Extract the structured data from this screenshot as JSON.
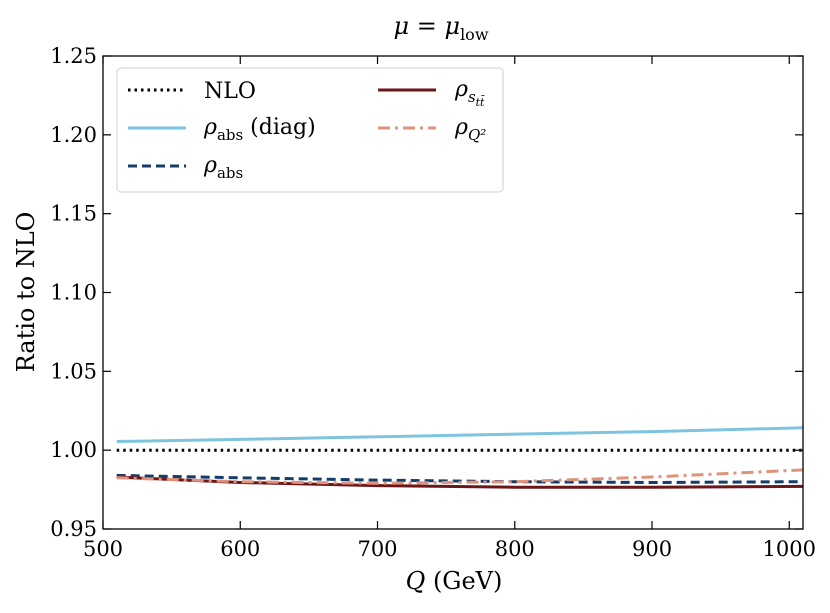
{
  "chart_data": {
    "type": "line",
    "title_symbol": "μ",
    "title_eq": " = ",
    "title_symbol2": "μ",
    "title_sub": "low",
    "xlabel_symbol": "Q",
    "xlabel_unit": " (GeV)",
    "ylabel": "Ratio to NLO",
    "xlim": [
      500,
      1010
    ],
    "ylim": [
      0.95,
      1.25
    ],
    "xticks": [
      500,
      600,
      700,
      800,
      900,
      1000
    ],
    "yticks": [
      0.95,
      1.0,
      1.05,
      1.1,
      1.15,
      1.2,
      1.25
    ],
    "ytick_labels": [
      "0.95",
      "1.00",
      "1.05",
      "1.10",
      "1.15",
      "1.20",
      "1.25"
    ],
    "grid": false,
    "legend_position": "top-left",
    "series": [
      {
        "name": "NLO",
        "legend_label": "NLO",
        "color": "#000000",
        "style": "dotted",
        "x": [
          510,
          600,
          700,
          800,
          900,
          1010
        ],
        "y": [
          1.0,
          1.0,
          1.0,
          1.0,
          1.0,
          1.0
        ]
      },
      {
        "name": "rho_abs_diag",
        "legend_symbol": "ρ",
        "legend_sub": "abs",
        "legend_suffix": " (diag)",
        "color": "#7ec4df",
        "style": "solid",
        "x": [
          510,
          600,
          700,
          800,
          900,
          1010
        ],
        "y": [
          1.0055,
          1.0068,
          1.0085,
          1.0102,
          1.0118,
          1.0142
        ]
      },
      {
        "name": "rho_abs",
        "legend_symbol": "ρ",
        "legend_sub": "abs",
        "color": "#143d6b",
        "style": "dashed",
        "x": [
          510,
          600,
          700,
          800,
          900,
          1010
        ],
        "y": [
          0.984,
          0.9825,
          0.981,
          0.98,
          0.9795,
          0.98
        ]
      },
      {
        "name": "rho_s_ttbar",
        "legend_symbol": "ρ",
        "legend_sub": "s",
        "legend_subsub": "tt̄",
        "color": "#6b1618",
        "style": "solid",
        "x": [
          510,
          600,
          700,
          800,
          900,
          1010
        ],
        "y": [
          0.983,
          0.9795,
          0.9775,
          0.9765,
          0.9765,
          0.977
        ]
      },
      {
        "name": "rho_Q2",
        "legend_symbol": "ρ",
        "legend_sub": "Q²",
        "color": "#e0937c",
        "style": "dashdot",
        "x": [
          510,
          600,
          700,
          800,
          900,
          1010
        ],
        "y": [
          0.9825,
          0.98,
          0.979,
          0.98,
          0.983,
          0.9875
        ]
      }
    ]
  }
}
